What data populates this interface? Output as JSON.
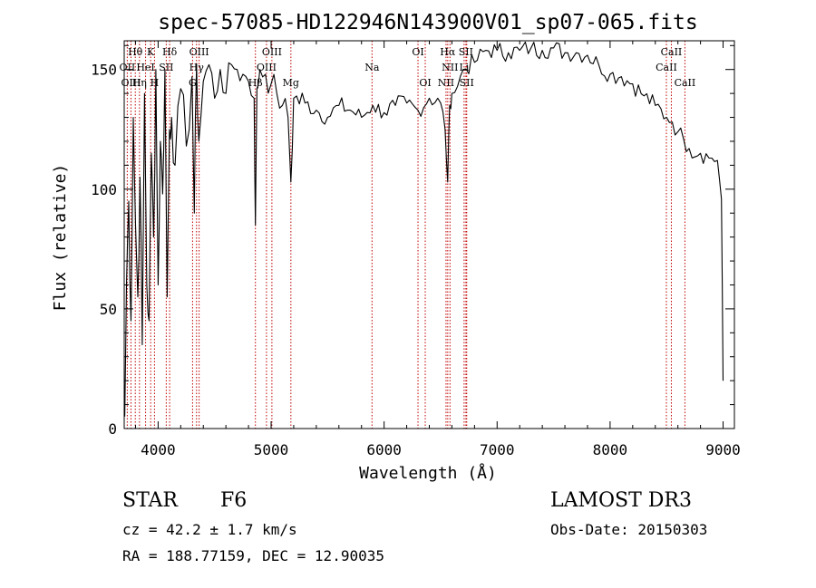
{
  "chart_data": {
    "type": "line",
    "title": "spec-57085-HD122946N143900V01_sp07-065.fits",
    "xlabel": "Wavelength (Å)",
    "ylabel": "Flux (relative)",
    "xlim": [
      3700,
      9100
    ],
    "ylim": [
      0,
      162
    ],
    "xticks": [
      4000,
      5000,
      6000,
      7000,
      8000,
      9000
    ],
    "xtick_labels": [
      "4000",
      "5000",
      "6000",
      "7000",
      "8000",
      "9000"
    ],
    "yticks": [
      0,
      50,
      100,
      150
    ],
    "ytick_labels": [
      "0",
      "50",
      "100",
      "150"
    ],
    "series": [
      {
        "name": "flux",
        "x": [
          3705,
          3720,
          3740,
          3760,
          3780,
          3800,
          3820,
          3840,
          3860,
          3880,
          3900,
          3920,
          3940,
          3960,
          3980,
          4000,
          4020,
          4040,
          4060,
          4080,
          4100,
          4120,
          4150,
          4200,
          4250,
          4300,
          4320,
          4340,
          4360,
          4400,
          4450,
          4500,
          4550,
          4600,
          4650,
          4700,
          4750,
          4800,
          4850,
          4861,
          4875,
          4900,
          4950,
          5000,
          5050,
          5100,
          5150,
          5175,
          5200,
          5300,
          5400,
          5500,
          5600,
          5700,
          5800,
          5900,
          6000,
          6100,
          6200,
          6300,
          6400,
          6500,
          6540,
          6563,
          6580,
          6600,
          6650,
          6700,
          6800,
          6900,
          7000,
          7100,
          7200,
          7300,
          7400,
          7500,
          7600,
          7700,
          7800,
          7900,
          8000,
          8100,
          8200,
          8300,
          8400,
          8500,
          8550,
          8600,
          8650,
          8700,
          8800,
          8900,
          8950,
          8985,
          9000
        ],
        "y": [
          5,
          60,
          95,
          45,
          130,
          85,
          55,
          105,
          35,
          140,
          60,
          45,
          115,
          80,
          150,
          60,
          120,
          98,
          150,
          55,
          125,
          130,
          110,
          142,
          118,
          147,
          90,
          152,
          120,
          145,
          152,
          138,
          150,
          140,
          152,
          150,
          148,
          145,
          138,
          85,
          142,
          150,
          148,
          144,
          140,
          135,
          130,
          103,
          138,
          136,
          133,
          130,
          135,
          133,
          130,
          135,
          132,
          135,
          136,
          133,
          138,
          136,
          125,
          103,
          135,
          140,
          143,
          150,
          153,
          158,
          158,
          157,
          158,
          159,
          158,
          159,
          157,
          157,
          156,
          152,
          148,
          147,
          144,
          139,
          135,
          130,
          128,
          124,
          121,
          117,
          115,
          113,
          112,
          96,
          20
        ]
      }
    ],
    "line_markers": [
      {
        "name": "Hθ",
        "wavelength": 3798,
        "row": 1
      },
      {
        "name": "OII",
        "wavelength": 3727,
        "row": 2
      },
      {
        "name": "OIII",
        "wavelength": 3760,
        "row": 3
      },
      {
        "name": "K",
        "wavelength": 3934,
        "row": 1
      },
      {
        "name": "HeI",
        "wavelength": 3889,
        "row": 2
      },
      {
        "name": "Hη",
        "wavelength": 3835,
        "row": 3
      },
      {
        "name": "Hδ",
        "wavelength": 4102,
        "row": 1
      },
      {
        "name": "SII",
        "wavelength": 4072,
        "row": 2
      },
      {
        "name": "H",
        "wavelength": 3968,
        "row": 3
      },
      {
        "name": "OIII",
        "wavelength": 4363,
        "row": 1
      },
      {
        "name": "Hγ",
        "wavelength": 4340,
        "row": 2
      },
      {
        "name": "G",
        "wavelength": 4305,
        "row": 3
      },
      {
        "name": "OIII",
        "wavelength": 5007,
        "row": 1
      },
      {
        "name": "OIII",
        "wavelength": 4959,
        "row": 2
      },
      {
        "name": "Hβ",
        "wavelength": 4861,
        "row": 3
      },
      {
        "name": "Mg",
        "wavelength": 5175,
        "row": 3
      },
      {
        "name": "Na",
        "wavelength": 5893,
        "row": 2
      },
      {
        "name": "OI",
        "wavelength": 6300,
        "row": 1
      },
      {
        "name": "OI",
        "wavelength": 6364,
        "row": 3
      },
      {
        "name": "Hα",
        "wavelength": 6563,
        "row": 1
      },
      {
        "name": "SII",
        "wavelength": 6724,
        "row": 1
      },
      {
        "name": "NII",
        "wavelength": 6583,
        "row": 2
      },
      {
        "name": "Li",
        "wavelength": 6708,
        "row": 2
      },
      {
        "name": "NII",
        "wavelength": 6548,
        "row": 3
      },
      {
        "name": "SII",
        "wavelength": 6731,
        "row": 3
      },
      {
        "name": "CaII",
        "wavelength": 8542,
        "row": 1
      },
      {
        "name": "CaII",
        "wavelength": 8498,
        "row": 2
      },
      {
        "name": "CaII",
        "wavelength": 8662,
        "row": 3
      }
    ]
  },
  "footer": {
    "object_class": "STAR",
    "subclass": "F6",
    "cz": "cz = 42.2 ± 1.7 km/s",
    "coords": "RA = 188.77159, DEC =  12.90035",
    "survey": "LAMOST DR3",
    "obs_date": "Obs-Date: 20150303"
  },
  "colors": {
    "spectrum": "#000000",
    "marker_lines": "#c00000",
    "axes": "#000000",
    "background": "#ffffff"
  }
}
